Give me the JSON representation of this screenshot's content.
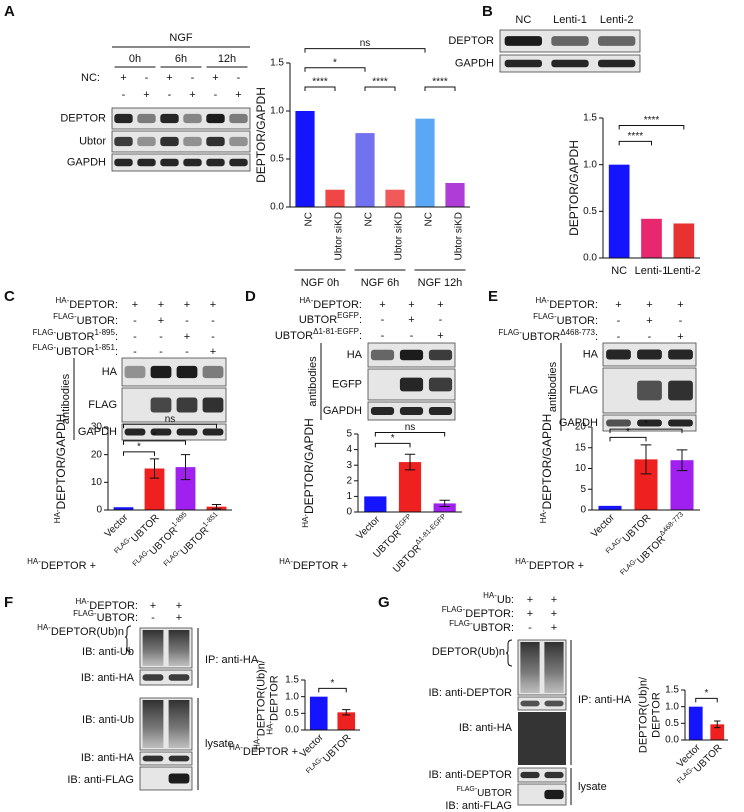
{
  "panels": {
    "A": {
      "letter": "A",
      "treatment": "NGF",
      "times": [
        "0h",
        "6h",
        "12h"
      ],
      "row_label": "NC:",
      "signs": [
        [
          "+",
          "-",
          "+",
          "-",
          "+",
          "-"
        ],
        [
          "-",
          "+",
          "-",
          "+",
          "-",
          "+"
        ]
      ],
      "bands": [
        "DEPTOR",
        "Ubtor",
        "GAPDH"
      ]
    },
    "B": {
      "letter": "B",
      "lanes": [
        "NC",
        "Lenti-1",
        "Lenti-2"
      ],
      "bands": [
        "DEPTOR",
        "GAPDH"
      ]
    },
    "C": {
      "letter": "C",
      "conditions": [
        {
          "label": {
            "pre": "HA-",
            "main": "DEPTOR:"
          },
          "signs": [
            "+",
            "+",
            "+",
            "+"
          ]
        },
        {
          "label": {
            "pre": "FLAG-",
            "main": "UBTOR:"
          },
          "signs": [
            "-",
            "+",
            "-",
            "-"
          ]
        },
        {
          "label": {
            "pre": "FLAG-",
            "main": "UBTOR",
            "sup": "1-895",
            "post": ":"
          },
          "signs": [
            "-",
            "-",
            "+",
            "-"
          ]
        },
        {
          "label": {
            "pre": "FLAG-",
            "main": "UBTOR",
            "sup": "1-851",
            "post": ":"
          },
          "signs": [
            "-",
            "-",
            "-",
            "+"
          ]
        }
      ],
      "antibodies": "antibodies",
      "bands": [
        "HA",
        "FLAG",
        "GAPDH"
      ],
      "x_prefix": {
        "pre": "HA-",
        "main": "DEPTOR +"
      }
    },
    "D": {
      "letter": "D",
      "conditions": [
        {
          "label": {
            "pre": "HA-",
            "main": "DEPTOR:"
          },
          "signs": [
            "+",
            "+",
            "+"
          ]
        },
        {
          "label": {
            "main": "UBTOR",
            "sup": "EGFP",
            "post": ":"
          },
          "signs": [
            "-",
            "+",
            "-"
          ]
        },
        {
          "label": {
            "main": "UBTOR",
            "sup": "Δ1-81-EGFP",
            "post": ":"
          },
          "signs": [
            "-",
            "-",
            "+"
          ]
        }
      ],
      "antibodies": "antibodies",
      "bands": [
        "HA",
        "EGFP",
        "GAPDH"
      ],
      "x_prefix": {
        "pre": "HA-",
        "main": "DEPTOR +"
      }
    },
    "E": {
      "letter": "E",
      "conditions": [
        {
          "label": {
            "pre": "HA-",
            "main": "DEPTOR:"
          },
          "signs": [
            "+",
            "+",
            "+"
          ]
        },
        {
          "label": {
            "pre": "FLAG-",
            "main": "UBTOR:"
          },
          "signs": [
            "-",
            "+",
            "-"
          ]
        },
        {
          "label": {
            "pre": "FLAG-",
            "main": "UBTOR",
            "sup": "Δ468-773",
            "post": ":"
          },
          "signs": [
            "-",
            "-",
            "+"
          ]
        }
      ],
      "antibodies": "antibodies",
      "bands": [
        "HA",
        "FLAG",
        "GAPDH"
      ],
      "x_prefix": {
        "pre": "HA-",
        "main": "DEPTOR +"
      }
    },
    "F": {
      "letter": "F",
      "conditions": [
        {
          "label": {
            "pre": "HA-",
            "main": "DEPTOR:"
          },
          "signs": [
            "+",
            "+"
          ]
        },
        {
          "label": {
            "pre": "FLAG-",
            "main": "UBTOR:"
          },
          "signs": [
            "-",
            "+"
          ]
        }
      ],
      "labels": [
        {
          "pre": "HA-",
          "main": "DEPTOR(Ub)n"
        },
        "IB: anti-Ub",
        "IB: anti-HA",
        "IB: anti-Ub",
        "IB: anti-HA",
        "IB: anti-FLAG"
      ],
      "ip": "IP: anti-HA",
      "lysate": "lysate",
      "x_prefix": {
        "pre": "HA-",
        "main": "DEPTOR +"
      }
    },
    "G": {
      "letter": "G",
      "conditions": [
        {
          "label": {
            "pre": "HA-",
            "main": "Ub:"
          },
          "signs": [
            "+",
            "+"
          ]
        },
        {
          "label": {
            "pre": "FLAG-",
            "main": "DEPTOR:"
          },
          "signs": [
            "+",
            "+"
          ]
        },
        {
          "label": {
            "pre": "FLAG-",
            "main": "UBTOR:"
          },
          "signs": [
            "-",
            "+"
          ]
        }
      ],
      "labels": [
        "DEPTOR(Ub)n",
        "IB: anti-DEPTOR",
        "IB: anti-HA",
        "IB: anti-DEPTOR",
        {
          "pre": "FLAG-",
          "main": "UBTOR"
        },
        "IB: anti-FLAG"
      ],
      "ip": "IP: anti-HA",
      "lysate": "lysate"
    }
  },
  "chart_data": [
    {
      "type": "bar",
      "ylabel": "DEPTOR/GAPDH",
      "categories": [
        "NC",
        "Ubtor siKD",
        "NC",
        "Ubtor siKD",
        "NC",
        "Ubtor siKD"
      ],
      "groups": [
        "NGF 0h",
        "NGF 6h",
        "NGF 12h"
      ],
      "values": [
        1.0,
        0.18,
        0.77,
        0.18,
        0.92,
        0.25
      ],
      "colors": [
        "#1414ff",
        "#f04646",
        "#7272f0",
        "#f05a5a",
        "#5aa8f5",
        "#b03cd8"
      ],
      "ylim": [
        0,
        1.5
      ],
      "yticks": [
        {
          "value": 0,
          "label": "0.0"
        },
        0.5,
        {
          "value": 1,
          "label": "1.0"
        },
        1.5
      ],
      "annotations": [
        "****",
        "*",
        "ns",
        "****",
        "****"
      ]
    },
    {
      "type": "bar",
      "ylabel": "DEPTOR/GAPDH",
      "categories": [
        "NC",
        "Lenti-1",
        "Lenti-2"
      ],
      "values": [
        1.0,
        0.42,
        0.37
      ],
      "colors": [
        "#1414ff",
        "#e8286e",
        "#e83232"
      ],
      "ylim": [
        0,
        1.5
      ],
      "yticks": [
        {
          "value": 0,
          "label": "0.0"
        },
        0.5,
        {
          "value": 1,
          "label": "1.0"
        },
        1.5
      ],
      "annotations": [
        "****",
        "****"
      ]
    },
    {
      "type": "bar",
      "ylabel": {
        "pre": "HA-",
        "main": "DEPTOR/GAPDH"
      },
      "categories": [
        "Vector",
        {
          "pre": "FLAG-",
          "main": "UBTOR"
        },
        {
          "pre": "FLAG-",
          "main": "UBTOR",
          "sup": "1-895"
        },
        {
          "pre": "FLAG-",
          "main": "UBTOR",
          "sup": "1-851"
        }
      ],
      "values": [
        1,
        15,
        15.5,
        1.2
      ],
      "errors": [
        null,
        3.5,
        4.5,
        0.8
      ],
      "colors": [
        "#1414ff",
        "#ee2020",
        "#a020f0",
        "#ee2020"
      ],
      "ylim": [
        0,
        30
      ],
      "yticks": [
        0,
        10,
        20,
        30
      ],
      "annotations": [
        "*",
        "*",
        "ns"
      ]
    },
    {
      "type": "bar",
      "ylabel": {
        "pre": "HA-",
        "main": "DEPTOR/GAPDH"
      },
      "categories": [
        "Vector",
        {
          "main": "UBTOR",
          "sup": "EGFP"
        },
        {
          "main": "UBTOR",
          "sup": "Δ1-81-EGFP"
        }
      ],
      "values": [
        1,
        3.2,
        0.55
      ],
      "errors": [
        null,
        0.5,
        0.2
      ],
      "colors": [
        "#1414ff",
        "#ee2020",
        "#a020f0"
      ],
      "ylim": [
        0,
        5
      ],
      "yticks": [
        0,
        1,
        2,
        3,
        4,
        5
      ],
      "annotations": [
        "*",
        "ns"
      ]
    },
    {
      "type": "bar",
      "ylabel": {
        "pre": "HA-",
        "main": "DEPTOR/GAPDH"
      },
      "categories": [
        "Vector",
        {
          "pre": "FLAG-",
          "main": "UBTOR"
        },
        {
          "pre": "FLAG-",
          "main": "UBTOR",
          "sup": "Δ468-773"
        }
      ],
      "values": [
        1,
        12.2,
        12
      ],
      "errors": [
        null,
        3.5,
        2.5
      ],
      "colors": [
        "#1414ff",
        "#ee2020",
        "#a020f0"
      ],
      "ylim": [
        0,
        20
      ],
      "yticks": [
        0,
        5,
        10,
        15,
        20
      ],
      "annotations": [
        "*",
        "*"
      ]
    },
    {
      "type": "bar",
      "ylabel": [
        {
          "pre": "HA-",
          "main": "DEPTOR(Ub)n/"
        },
        {
          "pre": "HA-",
          "main": "DEPTOR"
        }
      ],
      "categories": [
        "Vector",
        {
          "pre": "FLAG-",
          "main": "UBTOR"
        }
      ],
      "values": [
        1.0,
        0.53
      ],
      "errors": [
        null,
        0.08
      ],
      "colors": [
        "#1414ff",
        "#ee2020"
      ],
      "ylim": [
        0,
        1.5
      ],
      "yticks": [
        {
          "value": 0,
          "label": "0.0"
        },
        0.5,
        {
          "value": 1,
          "label": "1.0"
        },
        1.5
      ],
      "annotations": [
        "*"
      ]
    },
    {
      "type": "bar",
      "ylabel": [
        "DEPTOR(Ub)n/",
        "DEPTOR"
      ],
      "categories": [
        "Vector",
        {
          "pre": "FLAG-",
          "main": "UBTOR"
        }
      ],
      "values": [
        1.0,
        0.47
      ],
      "errors": [
        null,
        0.1
      ],
      "colors": [
        "#1414ff",
        "#ee2020"
      ],
      "ylim": [
        0,
        1.5
      ],
      "yticks": [
        {
          "value": 0,
          "label": "0.0"
        },
        0.5,
        {
          "value": 1,
          "label": "1.0"
        },
        1.5
      ],
      "annotations": [
        "*"
      ]
    }
  ]
}
